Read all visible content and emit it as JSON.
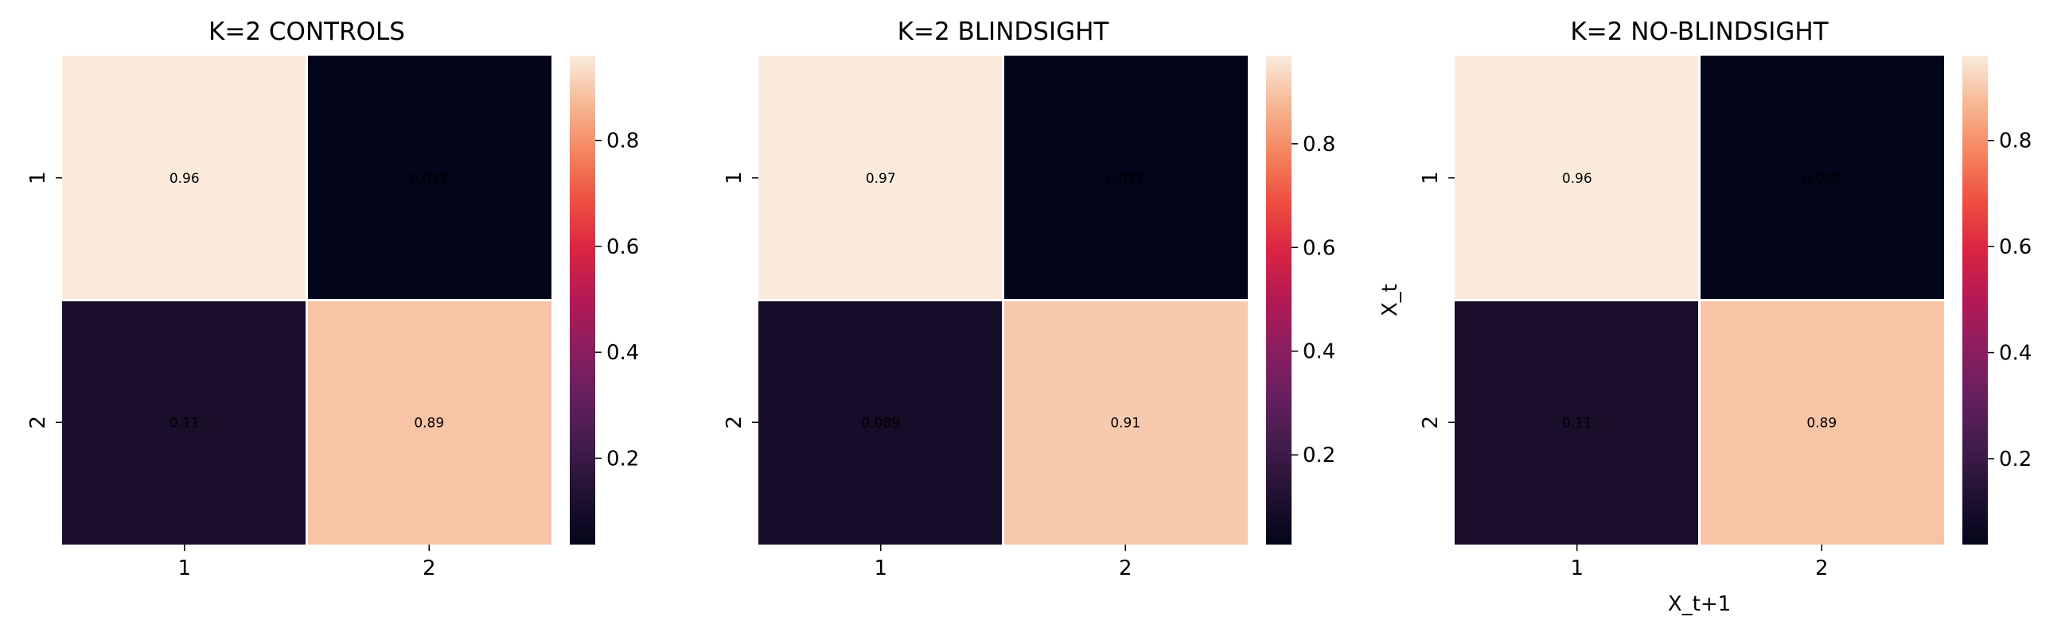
{
  "chart_data": [
    {
      "type": "heatmap",
      "title": "K=2 CONTROLS",
      "x_categories": [
        "1",
        "2"
      ],
      "y_categories": [
        "1",
        "2"
      ],
      "values": [
        [
          0.96,
          0.037
        ],
        [
          0.11,
          0.89
        ]
      ],
      "annotations": [
        [
          "0.96",
          "0.037"
        ],
        [
          "0.11",
          "0.89"
        ]
      ],
      "xlabel": "",
      "ylabel": "",
      "colorbar": {
        "range": [
          0.037,
          0.96
        ],
        "ticks": [
          "0.8",
          "0.6",
          "0.4",
          "0.2"
        ]
      }
    },
    {
      "type": "heatmap",
      "title": "K=2 BLINDSIGHT",
      "x_categories": [
        "1",
        "2"
      ],
      "y_categories": [
        "1",
        "2"
      ],
      "values": [
        [
          0.97,
          0.027
        ],
        [
          0.089,
          0.91
        ]
      ],
      "annotations": [
        [
          "0.97",
          "0.027"
        ],
        [
          "0.089",
          "0.91"
        ]
      ],
      "xlabel": "",
      "ylabel": "",
      "colorbar": {
        "range": [
          0.027,
          0.97
        ],
        "ticks": [
          "0.8",
          "0.6",
          "0.4",
          "0.2"
        ]
      }
    },
    {
      "type": "heatmap",
      "title": "K=2 NO-BLINDSIGHT",
      "x_categories": [
        "1",
        "2"
      ],
      "y_categories": [
        "1",
        "2"
      ],
      "values": [
        [
          0.96,
          0.038
        ],
        [
          0.11,
          0.89
        ]
      ],
      "annotations": [
        [
          "0.96",
          "0.038"
        ],
        [
          "0.11",
          "0.89"
        ]
      ],
      "xlabel": "X_t+1",
      "ylabel": "X_t",
      "colorbar": {
        "range": [
          0.038,
          0.96
        ],
        "ticks": [
          "0.8",
          "0.6",
          "0.4",
          "0.2"
        ]
      }
    }
  ],
  "colors": {
    "colormap": "rocket",
    "grid_lines": "#ffffff",
    "annotation_light_text": "#ffffff",
    "annotation_dark_text": "#262626"
  }
}
